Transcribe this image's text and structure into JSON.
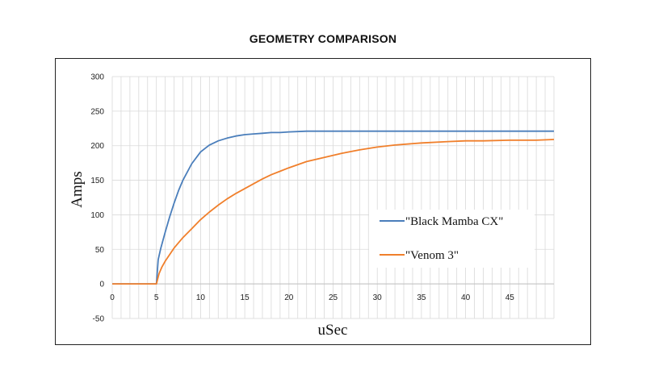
{
  "chart_data": {
    "type": "line",
    "title": "GEOMETRY COMPARISON",
    "xlabel": "uSec",
    "ylabel": "Amps",
    "xlim": [
      0,
      50
    ],
    "ylim": [
      -50,
      300
    ],
    "x_ticks": [
      0,
      5,
      10,
      15,
      20,
      25,
      30,
      35,
      40,
      45
    ],
    "y_ticks": [
      -50,
      0,
      50,
      100,
      150,
      200,
      250,
      300
    ],
    "grid": true,
    "legend_position": "right",
    "series": [
      {
        "name": "\"Black Mamba CX\"",
        "color": "#4a7ebb",
        "x": [
          0,
          5,
          5.2,
          5.5,
          6,
          6.5,
          7,
          7.5,
          8,
          9,
          10,
          11,
          12,
          13,
          14,
          15,
          16,
          17,
          18,
          19,
          20,
          22,
          25,
          30,
          35,
          40,
          45,
          50
        ],
        "y": [
          0,
          0,
          35,
          52,
          75,
          97,
          117,
          135,
          150,
          174,
          191,
          201,
          207,
          211,
          214,
          216,
          217,
          218,
          219,
          219,
          220,
          221,
          221,
          221,
          221,
          221,
          221,
          221
        ]
      },
      {
        "name": "\"Venom 3\"",
        "color": "#f07f2b",
        "x": [
          0,
          5,
          5.3,
          5.6,
          6,
          7,
          8,
          9,
          10,
          11,
          12,
          13,
          14,
          15,
          16,
          17,
          18,
          19,
          20,
          22,
          24,
          26,
          28,
          30,
          32,
          35,
          38,
          40,
          42,
          45,
          48,
          50
        ],
        "y": [
          0,
          0,
          15,
          24,
          33,
          52,
          67,
          80,
          93,
          104,
          114,
          123,
          131,
          138,
          145,
          152,
          158,
          163,
          168,
          177,
          183,
          189,
          194,
          198,
          201,
          204,
          206,
          207,
          207,
          208,
          208,
          209
        ]
      }
    ]
  }
}
